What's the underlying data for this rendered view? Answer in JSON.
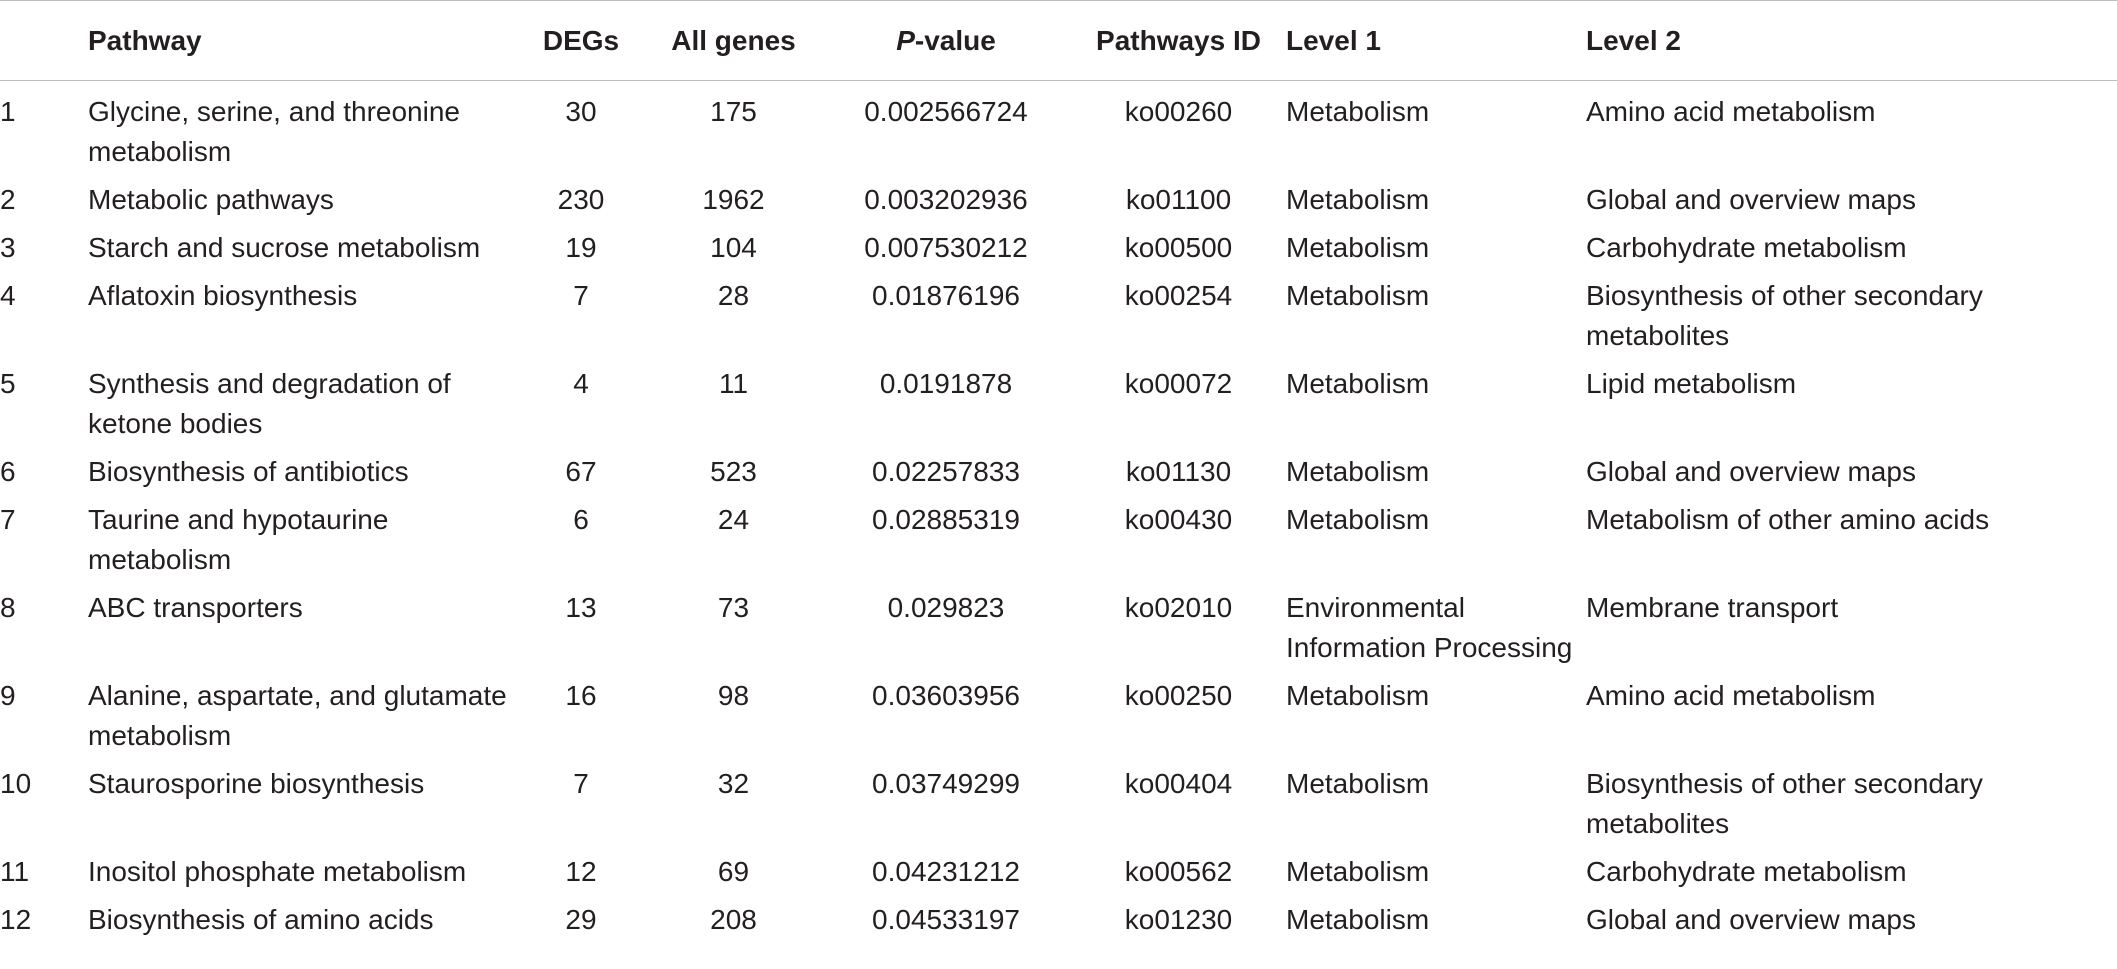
{
  "table": {
    "headers": {
      "index": "",
      "pathway": "Pathway",
      "degs": "DEGs",
      "all_genes": "All genes",
      "p_value_italic": "P",
      "p_value_rest": "-value",
      "pathways_id": "Pathways ID",
      "level1": "Level 1",
      "level2": "Level 2"
    },
    "rows": [
      {
        "idx": "1",
        "pathway": "Glycine, serine, and threonine metabolism",
        "degs": "30",
        "all": "175",
        "p": "0.002566724",
        "id": "ko00260",
        "l1": "Metabolism",
        "l2": "Amino acid metabolism"
      },
      {
        "idx": "2",
        "pathway": "Metabolic pathways",
        "degs": "230",
        "all": "1962",
        "p": "0.003202936",
        "id": "ko01100",
        "l1": "Metabolism",
        "l2": "Global and overview maps"
      },
      {
        "idx": "3",
        "pathway": "Starch and sucrose metabolism",
        "degs": "19",
        "all": "104",
        "p": "0.007530212",
        "id": "ko00500",
        "l1": "Metabolism",
        "l2": "Carbohydrate metabolism"
      },
      {
        "idx": "4",
        "pathway": "Aflatoxin biosynthesis",
        "degs": "7",
        "all": "28",
        "p": "0.01876196",
        "id": "ko00254",
        "l1": "Metabolism",
        "l2": "Biosynthesis of other secondary metabolites"
      },
      {
        "idx": "5",
        "pathway": "Synthesis and degradation of ketone bodies",
        "degs": "4",
        "all": "11",
        "p": "0.0191878",
        "id": "ko00072",
        "l1": "Metabolism",
        "l2": "Lipid metabolism"
      },
      {
        "idx": "6",
        "pathway": "Biosynthesis of antibiotics",
        "degs": "67",
        "all": "523",
        "p": "0.02257833",
        "id": "ko01130",
        "l1": "Metabolism",
        "l2": "Global and overview maps"
      },
      {
        "idx": "7",
        "pathway": "Taurine and hypotaurine metabolism",
        "degs": "6",
        "all": "24",
        "p": "0.02885319",
        "id": "ko00430",
        "l1": "Metabolism",
        "l2": "Metabolism of other amino acids"
      },
      {
        "idx": "8",
        "pathway": "ABC transporters",
        "degs": "13",
        "all": "73",
        "p": "0.029823",
        "id": "ko02010",
        "l1": "Environmental Information Processing",
        "l2": "Membrane transport"
      },
      {
        "idx": "9",
        "pathway": "Alanine, aspartate, and glutamate metabolism",
        "degs": "16",
        "all": "98",
        "p": "0.03603956",
        "id": "ko00250",
        "l1": "Metabolism",
        "l2": "Amino acid metabolism"
      },
      {
        "idx": "10",
        "pathway": "Staurosporine biosynthesis",
        "degs": "7",
        "all": "32",
        "p": "0.03749299",
        "id": "ko00404",
        "l1": "Metabolism",
        "l2": "Biosynthesis of other secondary metabolites"
      },
      {
        "idx": "11",
        "pathway": "Inositol phosphate metabolism",
        "degs": "12",
        "all": "69",
        "p": "0.04231212",
        "id": "ko00562",
        "l1": "Metabolism",
        "l2": "Carbohydrate metabolism"
      },
      {
        "idx": "12",
        "pathway": "Biosynthesis of amino acids",
        "degs": "29",
        "all": "208",
        "p": "0.04533197",
        "id": "ko01230",
        "l1": "Metabolism",
        "l2": "Global and overview maps"
      }
    ]
  }
}
